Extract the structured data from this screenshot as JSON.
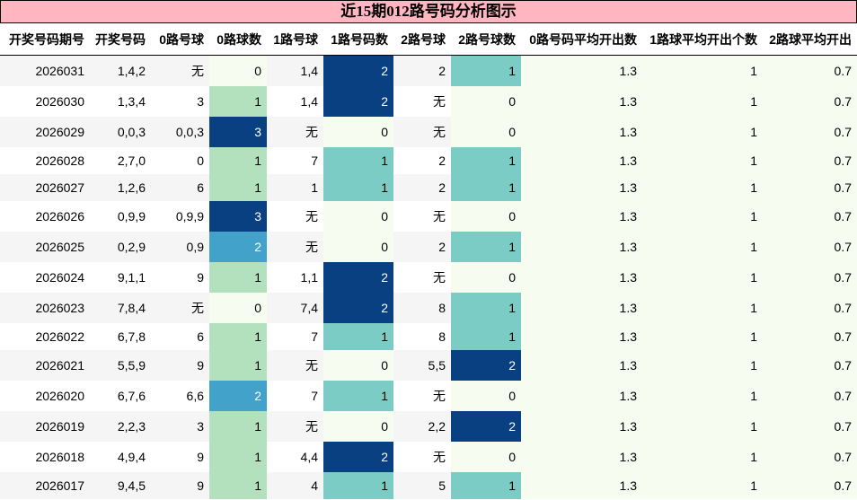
{
  "title": "近15期012路号码分析图示",
  "columns": [
    "开奖号码期号",
    "开奖号码",
    "0路号球",
    "0路球数",
    "1路号球",
    "1路号码数",
    "2路号球",
    "2路号球数",
    "0路号码平均开出数",
    "1路球平均开出个数",
    "2路球平均开出"
  ],
  "colormap": {
    "name": "GnBu",
    "low": "#f7fcf0",
    "c1_3": "#b4e1bd",
    "c2_3": "#43a2ca",
    "mid": "#7bccc4",
    "high": "#084081"
  },
  "rows": [
    [
      "2026031",
      "1,4,2",
      "无",
      "0",
      "1,4",
      "2",
      "2",
      "1",
      "1.3",
      "1",
      "0.7"
    ],
    [
      "2026030",
      "1,3,4",
      "3",
      "1",
      "1,4",
      "2",
      "无",
      "0",
      "1.3",
      "1",
      "0.7"
    ],
    [
      "2026029",
      "0,0,3",
      "0,0,3",
      "3",
      "无",
      "0",
      "无",
      "0",
      "1.3",
      "1",
      "0.7"
    ],
    [
      "2026028",
      "2,7,0",
      "0",
      "1",
      "7",
      "1",
      "2",
      "1",
      "1.3",
      "1",
      "0.7"
    ],
    [
      "2026027",
      "1,2,6",
      "6",
      "1",
      "1",
      "1",
      "2",
      "1",
      "1.3",
      "1",
      "0.7"
    ],
    [
      "2026026",
      "0,9,9",
      "0,9,9",
      "3",
      "无",
      "0",
      "无",
      "0",
      "1.3",
      "1",
      "0.7"
    ],
    [
      "2026025",
      "0,2,9",
      "0,9",
      "2",
      "无",
      "0",
      "2",
      "1",
      "1.3",
      "1",
      "0.7"
    ],
    [
      "2026024",
      "9,1,1",
      "9",
      "1",
      "1,1",
      "2",
      "无",
      "0",
      "1.3",
      "1",
      "0.7"
    ],
    [
      "2026023",
      "7,8,4",
      "无",
      "0",
      "7,4",
      "2",
      "8",
      "1",
      "1.3",
      "1",
      "0.7"
    ],
    [
      "2026022",
      "6,7,8",
      "6",
      "1",
      "7",
      "1",
      "8",
      "1",
      "1.3",
      "1",
      "0.7"
    ],
    [
      "2026021",
      "5,5,9",
      "9",
      "1",
      "无",
      "0",
      "5,5",
      "2",
      "1.3",
      "1",
      "0.7"
    ],
    [
      "2026020",
      "6,7,6",
      "6,6",
      "2",
      "7",
      "1",
      "无",
      "0",
      "1.3",
      "1",
      "0.7"
    ],
    [
      "2026019",
      "2,2,3",
      "3",
      "1",
      "无",
      "0",
      "2,2",
      "2",
      "1.3",
      "1",
      "0.7"
    ],
    [
      "2026018",
      "4,9,4",
      "9",
      "1",
      "4,4",
      "2",
      "无",
      "0",
      "1.3",
      "1",
      "0.7"
    ],
    [
      "2026017",
      "9,4,5",
      "9",
      "1",
      "4",
      "1",
      "5",
      "1",
      "1.3",
      "1",
      "0.7"
    ]
  ]
}
